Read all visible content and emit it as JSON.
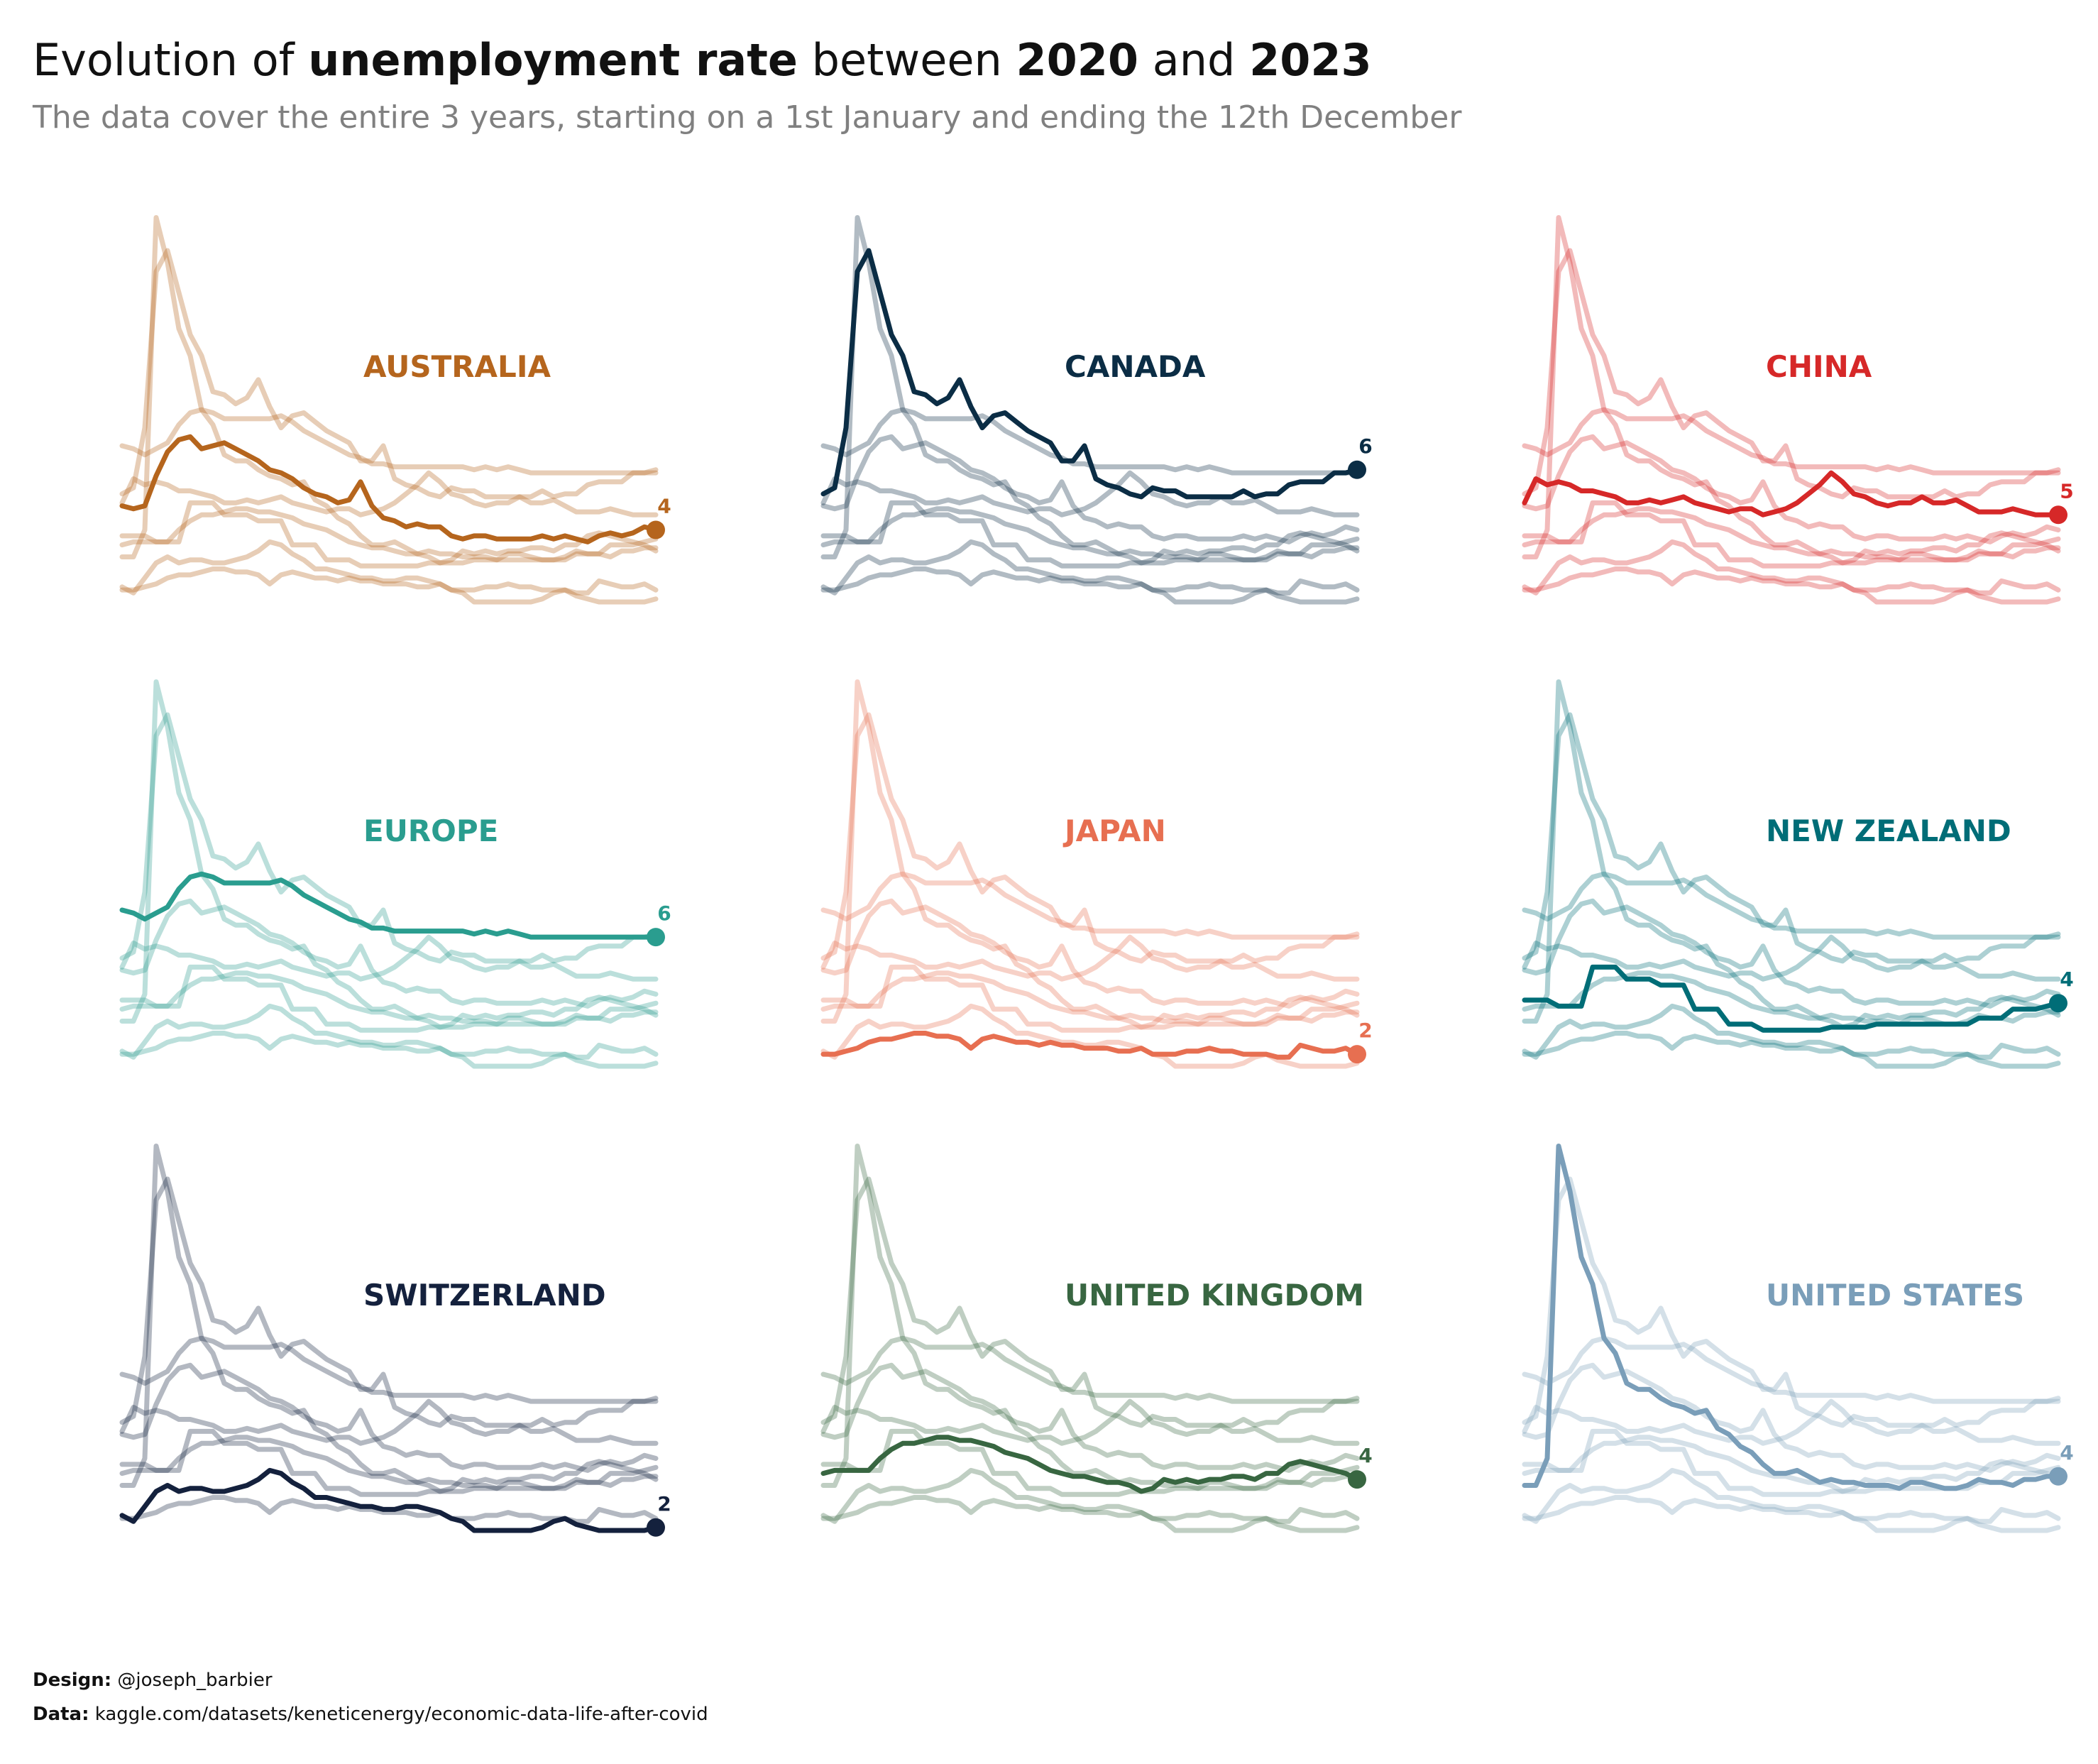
{
  "title": {
    "prefix": "Evolution of ",
    "metric": "unemployment rate",
    "middle": " between ",
    "year_start": "2020",
    "and": " and ",
    "year_end": "2023"
  },
  "subtitle": "The data cover the entire 3 years, starting on a 1st January and ending the 12th December",
  "credits": {
    "design_label": "Design:",
    "design_value": " @joseph_barbier",
    "data_label": "Data:",
    "data_value": " kaggle.com/datasets/keneticenergy/economic-data-life-after-covid"
  },
  "chart_data": {
    "type": "line",
    "layout": "small-multiples 3x3",
    "shared_y_range": [
      2,
      15
    ],
    "x_points": 48,
    "series": [
      {
        "name": "AUSTRALIA",
        "color": "#b5651d",
        "end_label": "4",
        "values": [
          5.2,
          5.1,
          5.2,
          6.2,
          7.0,
          7.4,
          7.5,
          7.1,
          7.2,
          7.3,
          7.1,
          6.9,
          6.7,
          6.4,
          6.3,
          6.1,
          5.8,
          5.6,
          5.5,
          5.3,
          5.4,
          6.0,
          5.2,
          4.8,
          4.7,
          4.5,
          4.6,
          4.5,
          4.5,
          4.2,
          4.1,
          4.2,
          4.2,
          4.1,
          4.1,
          4.1,
          4.1,
          4.2,
          4.1,
          4.2,
          4.1,
          4.0,
          4.2,
          4.3,
          4.2,
          4.3,
          4.5,
          4.4
        ]
      },
      {
        "name": "CANADA",
        "color": "#0b2d45",
        "end_label": "6",
        "values": [
          5.6,
          5.8,
          7.8,
          13.0,
          13.7,
          12.3,
          10.9,
          10.2,
          9.0,
          8.9,
          8.6,
          8.8,
          9.4,
          8.5,
          7.8,
          8.2,
          8.3,
          8.0,
          7.7,
          7.5,
          7.3,
          6.7,
          6.7,
          7.2,
          6.1,
          5.9,
          5.8,
          5.6,
          5.5,
          5.8,
          5.7,
          5.7,
          5.5,
          5.5,
          5.5,
          5.5,
          5.5,
          5.7,
          5.5,
          5.6,
          5.6,
          5.9,
          6.0,
          6.0,
          6.0,
          6.3,
          6.3,
          6.4
        ]
      },
      {
        "name": "CHINA",
        "color": "#d62828",
        "end_label": "5",
        "values": [
          5.3,
          6.1,
          5.9,
          6.0,
          5.9,
          5.7,
          5.7,
          5.6,
          5.5,
          5.3,
          5.3,
          5.4,
          5.3,
          5.4,
          5.5,
          5.3,
          5.2,
          5.1,
          5.0,
          5.1,
          5.1,
          4.9,
          5.0,
          5.1,
          5.3,
          5.6,
          5.9,
          6.3,
          6.0,
          5.6,
          5.5,
          5.3,
          5.2,
          5.3,
          5.3,
          5.5,
          5.3,
          5.3,
          5.4,
          5.2,
          5.0,
          5.0,
          5.0,
          5.1,
          5.0,
          4.9,
          4.9,
          4.9
        ]
      },
      {
        "name": "EUROPE",
        "color": "#2a9d8f",
        "end_label": "6",
        "values": [
          7.2,
          7.1,
          6.9,
          7.1,
          7.3,
          7.9,
          8.3,
          8.4,
          8.3,
          8.1,
          8.1,
          8.1,
          8.1,
          8.1,
          8.2,
          8.0,
          7.7,
          7.5,
          7.3,
          7.1,
          6.9,
          6.8,
          6.6,
          6.6,
          6.5,
          6.5,
          6.5,
          6.5,
          6.5,
          6.5,
          6.5,
          6.4,
          6.5,
          6.4,
          6.5,
          6.4,
          6.3,
          6.3,
          6.3,
          6.3,
          6.3,
          6.3,
          6.3,
          6.3,
          6.3,
          6.3,
          6.3,
          6.3
        ]
      },
      {
        "name": "JAPAN",
        "color": "#e76f51",
        "end_label": "2",
        "values": [
          2.4,
          2.4,
          2.5,
          2.6,
          2.8,
          2.9,
          2.9,
          3.0,
          3.1,
          3.1,
          3.0,
          3.0,
          2.9,
          2.6,
          2.9,
          3.0,
          2.9,
          2.8,
          2.8,
          2.7,
          2.8,
          2.7,
          2.7,
          2.6,
          2.6,
          2.6,
          2.5,
          2.5,
          2.6,
          2.4,
          2.4,
          2.4,
          2.5,
          2.5,
          2.6,
          2.5,
          2.5,
          2.4,
          2.4,
          2.4,
          2.3,
          2.3,
          2.7,
          2.6,
          2.5,
          2.5,
          2.6,
          2.4
        ]
      },
      {
        "name": "NEW ZEALAND",
        "color": "#006d77",
        "end_label": "4",
        "values": [
          4.2,
          4.2,
          4.2,
          4.0,
          4.0,
          4.0,
          5.3,
          5.3,
          5.3,
          4.9,
          4.9,
          4.9,
          4.7,
          4.7,
          4.7,
          3.9,
          3.9,
          3.9,
          3.4,
          3.4,
          3.4,
          3.2,
          3.2,
          3.2,
          3.2,
          3.2,
          3.2,
          3.3,
          3.3,
          3.3,
          3.3,
          3.4,
          3.4,
          3.4,
          3.4,
          3.4,
          3.4,
          3.4,
          3.4,
          3.4,
          3.6,
          3.6,
          3.6,
          3.9,
          3.9,
          3.9,
          4.0,
          4.1
        ]
      },
      {
        "name": "SWITZERLAND",
        "color": "#14213d",
        "end_label": "2",
        "values": [
          2.5,
          2.3,
          2.8,
          3.3,
          3.5,
          3.3,
          3.4,
          3.4,
          3.3,
          3.3,
          3.4,
          3.5,
          3.7,
          4.0,
          3.9,
          3.6,
          3.4,
          3.1,
          3.1,
          3.0,
          2.9,
          2.8,
          2.8,
          2.7,
          2.7,
          2.8,
          2.8,
          2.7,
          2.6,
          2.4,
          2.3,
          2.0,
          2.0,
          2.0,
          2.0,
          2.0,
          2.0,
          2.1,
          2.3,
          2.4,
          2.2,
          2.1,
          2.0,
          2.0,
          2.0,
          2.0,
          2.0,
          2.1
        ]
      },
      {
        "name": "UNITED KINGDOM",
        "color": "#386641",
        "end_label": "4",
        "values": [
          3.9,
          4.0,
          4.0,
          4.0,
          4.0,
          4.4,
          4.7,
          4.9,
          4.9,
          5.0,
          5.1,
          5.1,
          5.0,
          5.0,
          4.9,
          4.8,
          4.6,
          4.5,
          4.4,
          4.2,
          4.0,
          3.9,
          3.8,
          3.8,
          3.7,
          3.6,
          3.6,
          3.5,
          3.3,
          3.4,
          3.7,
          3.6,
          3.7,
          3.6,
          3.7,
          3.7,
          3.8,
          3.8,
          3.7,
          3.9,
          3.9,
          4.2,
          4.3,
          4.2,
          4.1,
          4.0,
          3.9,
          3.7
        ]
      },
      {
        "name": "UNITED STATES",
        "color": "#7a9eb9",
        "end_label": "4",
        "values": [
          3.5,
          3.5,
          4.4,
          14.8,
          13.3,
          11.1,
          10.2,
          8.4,
          7.9,
          6.9,
          6.7,
          6.7,
          6.4,
          6.2,
          6.1,
          5.9,
          6.0,
          5.4,
          5.2,
          4.8,
          4.6,
          4.2,
          3.9,
          3.9,
          4.0,
          3.8,
          3.6,
          3.7,
          3.6,
          3.6,
          3.5,
          3.5,
          3.5,
          3.4,
          3.6,
          3.6,
          3.5,
          3.4,
          3.4,
          3.5,
          3.7,
          3.6,
          3.6,
          3.5,
          3.7,
          3.7,
          3.8,
          3.8
        ]
      }
    ]
  }
}
